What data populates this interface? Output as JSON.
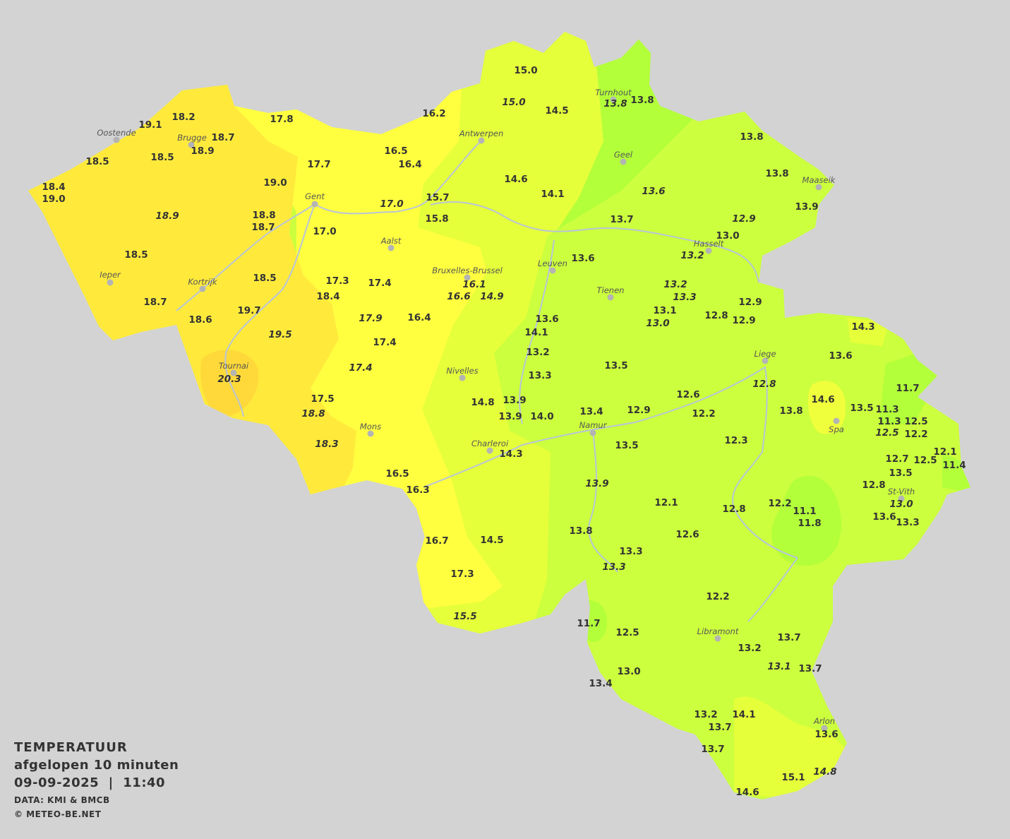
{
  "legend": {
    "title": "TEMPERATUUR",
    "subtitle": "afgelopen 10 minuten",
    "datetime": "09-09-2025  |  11:40",
    "source": "DATA: KMI & BMCB",
    "copyright": "© METEO-BE.NET"
  },
  "colors": {
    "background": "#d3d3d3",
    "zone_orange": "#ffd93a",
    "zone_yellow_orange": "#ffea3c",
    "zone_yellow": "#ffff40",
    "zone_yellow_green": "#e5ff3a",
    "zone_light_green": "#ccff3d",
    "zone_green": "#b2ff3a"
  },
  "cities": [
    "Oostende",
    "Brugge",
    "Gent",
    "Antwerpen",
    "Turnhout",
    "Geel",
    "Maaseik",
    "Hasselt",
    "Aalst",
    "Leuven",
    "Bruxelles-Brussel",
    "Tienen",
    "Ieper",
    "Kortrijk",
    "Liege",
    "Tournai",
    "Nivelles",
    "Spa",
    "Namur",
    "Mons",
    "Charleroi",
    "St-Vith",
    "Libramont",
    "Arlon"
  ],
  "stations": [
    {
      "v": "19.1"
    },
    {
      "v": "18.2"
    },
    {
      "v": "17.8"
    },
    {
      "v": "16.2"
    },
    {
      "v": "15.0"
    },
    {
      "v": "15.0",
      "italic": true
    },
    {
      "v": "14.5"
    },
    {
      "v": "13.8",
      "italic": true
    },
    {
      "v": "13.8"
    },
    {
      "v": "18.7"
    },
    {
      "v": "18.9"
    },
    {
      "v": "18.5"
    },
    {
      "v": "18.5"
    },
    {
      "v": "16.5"
    },
    {
      "v": "16.4"
    },
    {
      "v": "17.7"
    },
    {
      "v": "13.8"
    },
    {
      "v": "18.4"
    },
    {
      "v": "19.0"
    },
    {
      "v": "19.0"
    },
    {
      "v": "14.6"
    },
    {
      "v": "14.1"
    },
    {
      "v": "13.6",
      "italic": true
    },
    {
      "v": "13.8"
    },
    {
      "v": "15.7"
    },
    {
      "v": "17.0",
      "italic": true
    },
    {
      "v": "13.9"
    },
    {
      "v": "18.9",
      "italic": true
    },
    {
      "v": "18.8"
    },
    {
      "v": "18.7"
    },
    {
      "v": "15.8"
    },
    {
      "v": "12.9",
      "italic": true
    },
    {
      "v": "13.7"
    },
    {
      "v": "17.0"
    },
    {
      "v": "13.0"
    },
    {
      "v": "13.2",
      "italic": true
    },
    {
      "v": "18.5"
    },
    {
      "v": "13.6"
    },
    {
      "v": "18.5"
    },
    {
      "v": "17.3"
    },
    {
      "v": "17.4"
    },
    {
      "v": "16.1",
      "italic": true
    },
    {
      "v": "16.6",
      "italic": true
    },
    {
      "v": "14.9",
      "italic": true
    },
    {
      "v": "13.2",
      "italic": true
    },
    {
      "v": "13.3",
      "italic": true
    },
    {
      "v": "18.4"
    },
    {
      "v": "18.7"
    },
    {
      "v": "12.9"
    },
    {
      "v": "13.1"
    },
    {
      "v": "13.0",
      "italic": true
    },
    {
      "v": "12.8"
    },
    {
      "v": "12.9"
    },
    {
      "v": "19.7"
    },
    {
      "v": "18.6"
    },
    {
      "v": "13.6"
    },
    {
      "v": "17.9",
      "italic": true
    },
    {
      "v": "16.4"
    },
    {
      "v": "14.3"
    },
    {
      "v": "14.1"
    },
    {
      "v": "19.5",
      "italic": true
    },
    {
      "v": "17.4"
    },
    {
      "v": "13.2"
    },
    {
      "v": "13.6"
    },
    {
      "v": "20.3",
      "italic": true
    },
    {
      "v": "17.4",
      "italic": true
    },
    {
      "v": "13.3"
    },
    {
      "v": "13.5"
    },
    {
      "v": "12.8",
      "italic": true
    },
    {
      "v": "11.7"
    },
    {
      "v": "17.5"
    },
    {
      "v": "12.6"
    },
    {
      "v": "14.8"
    },
    {
      "v": "13.9"
    },
    {
      "v": "13.9"
    },
    {
      "v": "14.0"
    },
    {
      "v": "13.4"
    },
    {
      "v": "12.9"
    },
    {
      "v": "12.2"
    },
    {
      "v": "13.8"
    },
    {
      "v": "14.6"
    },
    {
      "v": "13.5"
    },
    {
      "v": "11.3"
    },
    {
      "v": "11.3"
    },
    {
      "v": "12.5"
    },
    {
      "v": "18.8",
      "italic": true
    },
    {
      "v": "12.5",
      "italic": true
    },
    {
      "v": "12.2"
    },
    {
      "v": "12.3"
    },
    {
      "v": "18.3",
      "italic": true
    },
    {
      "v": "13.5"
    },
    {
      "v": "14.3"
    },
    {
      "v": "12.1"
    },
    {
      "v": "12.7"
    },
    {
      "v": "12.5"
    },
    {
      "v": "11.4"
    },
    {
      "v": "16.5"
    },
    {
      "v": "13.5"
    },
    {
      "v": "16.3"
    },
    {
      "v": "13.9",
      "italic": true
    },
    {
      "v": "12.8"
    },
    {
      "v": "13.0",
      "italic": true
    },
    {
      "v": "12.1"
    },
    {
      "v": "12.2"
    },
    {
      "v": "12.8"
    },
    {
      "v": "11.1"
    },
    {
      "v": "11.8"
    },
    {
      "v": "13.6"
    },
    {
      "v": "13.3"
    },
    {
      "v": "13.8"
    },
    {
      "v": "12.6"
    },
    {
      "v": "16.7"
    },
    {
      "v": "14.5"
    },
    {
      "v": "13.3"
    },
    {
      "v": "13.3",
      "italic": true
    },
    {
      "v": "17.3"
    },
    {
      "v": "12.2"
    },
    {
      "v": "15.5",
      "italic": true
    },
    {
      "v": "11.7"
    },
    {
      "v": "12.5"
    },
    {
      "v": "13.7"
    },
    {
      "v": "13.2"
    },
    {
      "v": "13.1",
      "italic": true
    },
    {
      "v": "13.7"
    },
    {
      "v": "13.0"
    },
    {
      "v": "13.4"
    },
    {
      "v": "14.1"
    },
    {
      "v": "13.2"
    },
    {
      "v": "13.7"
    },
    {
      "v": "13.6"
    },
    {
      "v": "13.7"
    },
    {
      "v": "15.1"
    },
    {
      "v": "14.8",
      "italic": true
    },
    {
      "v": "14.6"
    }
  ]
}
